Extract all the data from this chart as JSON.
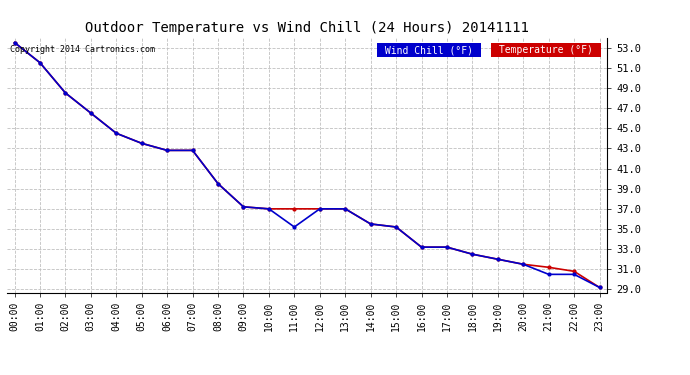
{
  "title": "Outdoor Temperature vs Wind Chill (24 Hours) 20141111",
  "copyright": "Copyright 2014 Cartronics.com",
  "background_color": "#ffffff",
  "grid_color": "#c0c0c0",
  "hours": [
    "00:00",
    "01:00",
    "02:00",
    "03:00",
    "04:00",
    "05:00",
    "06:00",
    "07:00",
    "08:00",
    "09:00",
    "10:00",
    "11:00",
    "12:00",
    "13:00",
    "14:00",
    "15:00",
    "16:00",
    "17:00",
    "18:00",
    "19:00",
    "20:00",
    "21:00",
    "22:00",
    "23:00"
  ],
  "temperature": [
    53.5,
    51.5,
    48.5,
    46.5,
    44.5,
    43.5,
    42.8,
    42.8,
    39.5,
    37.2,
    37.0,
    37.0,
    37.0,
    37.0,
    35.5,
    35.2,
    33.2,
    33.2,
    32.5,
    32.0,
    31.5,
    31.2,
    30.8,
    29.2
  ],
  "wind_chill": [
    53.5,
    51.5,
    48.5,
    46.5,
    44.5,
    43.5,
    42.8,
    42.8,
    39.5,
    37.2,
    37.0,
    35.2,
    37.0,
    37.0,
    35.5,
    35.2,
    33.2,
    33.2,
    32.5,
    32.0,
    31.5,
    30.5,
    30.5,
    29.2
  ],
  "temp_color": "#cc0000",
  "wind_chill_color": "#0000cc",
  "ylim_min": 29.0,
  "ylim_max": 53.5,
  "yticks": [
    29.0,
    31.0,
    33.0,
    35.0,
    37.0,
    39.0,
    41.0,
    43.0,
    45.0,
    47.0,
    49.0,
    51.0,
    53.0
  ],
  "marker": ".",
  "marker_size": 4,
  "line_width": 1.2,
  "legend_wc_label": "Wind Chill (°F)",
  "legend_temp_label": "Temperature (°F)"
}
